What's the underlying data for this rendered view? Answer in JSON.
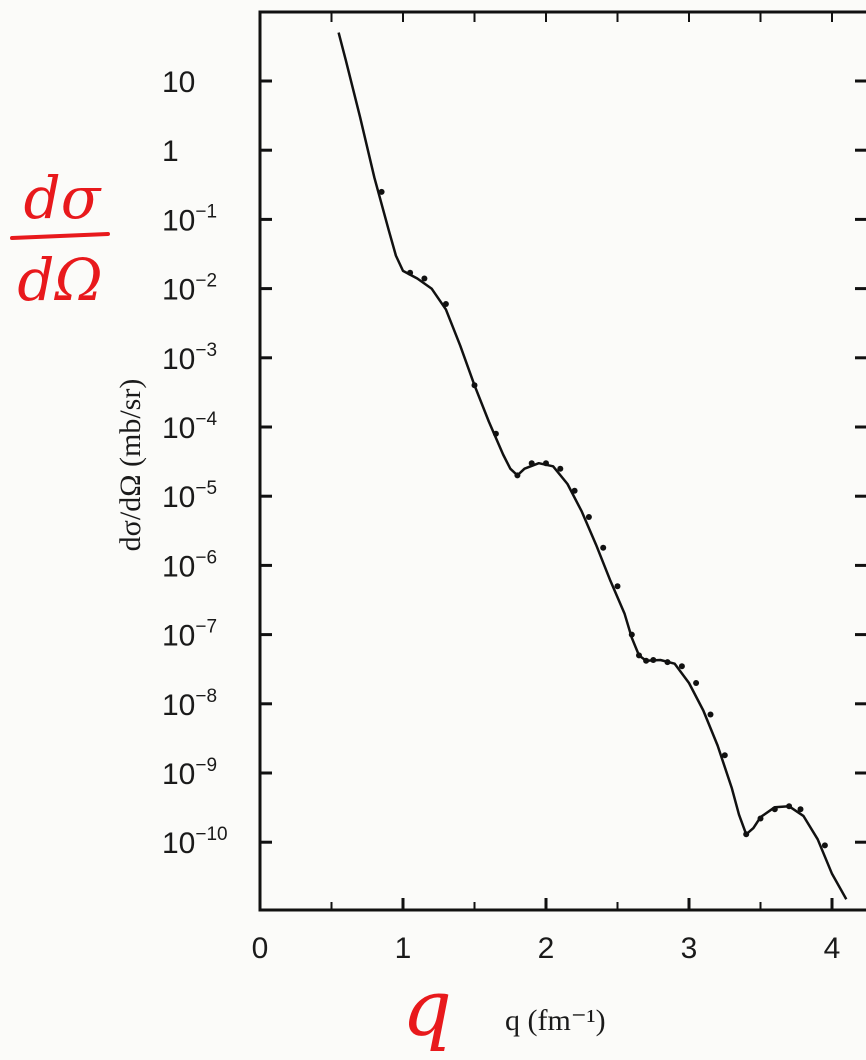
{
  "chart_data": {
    "type": "scatter",
    "xlabel": "q (fm⁻¹)",
    "ylabel": "dσ/dΩ (mb/sr)",
    "x_tick_labels": [
      "0",
      "1",
      "2",
      "3",
      "4"
    ],
    "y_tick_labels": [
      {
        "base": "10",
        "exp": ""
      },
      {
        "base": "1",
        "exp": ""
      },
      {
        "base": "10",
        "exp": "−1"
      },
      {
        "base": "10",
        "exp": "−2"
      },
      {
        "base": "10",
        "exp": "−3"
      },
      {
        "base": "10",
        "exp": "−4"
      },
      {
        "base": "10",
        "exp": "−5"
      },
      {
        "base": "10",
        "exp": "−6"
      },
      {
        "base": "10",
        "exp": "−7"
      },
      {
        "base": "10",
        "exp": "−8"
      },
      {
        "base": "10",
        "exp": "−9"
      },
      {
        "base": "10",
        "exp": "−10"
      }
    ],
    "xlim": [
      0,
      4.3
    ],
    "ylim": [
      3e-11,
      80
    ],
    "y_scale": "log",
    "grid": false,
    "series": [
      {
        "style": "curve",
        "x": [
          0.55,
          0.6,
          0.7,
          0.8,
          0.9,
          0.95,
          1.0,
          1.1,
          1.2,
          1.3,
          1.4,
          1.5,
          1.6,
          1.7,
          1.75,
          1.8,
          1.85,
          1.95,
          2.05,
          2.15,
          2.25,
          2.35,
          2.45,
          2.55,
          2.6,
          2.65,
          2.7,
          2.8,
          2.9,
          3.0,
          3.1,
          3.2,
          3.3,
          3.35,
          3.4,
          3.45,
          3.5,
          3.6,
          3.7,
          3.8,
          3.9,
          4.0,
          4.1
        ],
        "y": [
          50,
          20,
          3,
          0.4,
          0.07,
          0.03,
          0.018,
          0.014,
          0.01,
          0.005,
          0.0015,
          0.0004,
          0.00012,
          4e-05,
          2.5e-05,
          2e-05,
          2.5e-05,
          3e-05,
          2.7e-05,
          1.5e-05,
          6e-06,
          2e-06,
          6e-07,
          2e-07,
          9e-08,
          5e-08,
          4.2e-08,
          4.3e-08,
          3.8e-08,
          2e-08,
          8e-09,
          2.5e-09,
          6e-10,
          2.5e-10,
          1.3e-10,
          1.6e-10,
          2.3e-10,
          3.2e-10,
          3.3e-10,
          2.4e-10,
          1.1e-10,
          3.5e-11,
          1.5e-11
        ]
      },
      {
        "style": "points",
        "x": [
          0.85,
          1.05,
          1.15,
          1.3,
          1.5,
          1.65,
          1.8,
          1.9,
          2.0,
          2.1,
          2.2,
          2.3,
          2.4,
          2.5,
          2.6,
          2.65,
          2.7,
          2.75,
          2.85,
          2.95,
          3.05,
          3.15,
          3.25,
          3.4,
          3.5,
          3.6,
          3.7,
          3.78,
          3.95
        ],
        "y": [
          0.25,
          0.017,
          0.014,
          0.006,
          0.0004,
          8e-05,
          2e-05,
          3e-05,
          3e-05,
          2.5e-05,
          1.2e-05,
          5e-06,
          1.8e-06,
          5e-07,
          1e-07,
          5e-08,
          4.2e-08,
          4.3e-08,
          4e-08,
          3.5e-08,
          2e-08,
          7e-09,
          1.8e-09,
          1.3e-10,
          2.2e-10,
          3e-10,
          3.3e-10,
          3e-10,
          9e-11
        ]
      }
    ]
  },
  "annotations": {
    "y_hand_numerator": "dσ",
    "y_hand_denominator": "dΩ",
    "x_hand": "q"
  }
}
